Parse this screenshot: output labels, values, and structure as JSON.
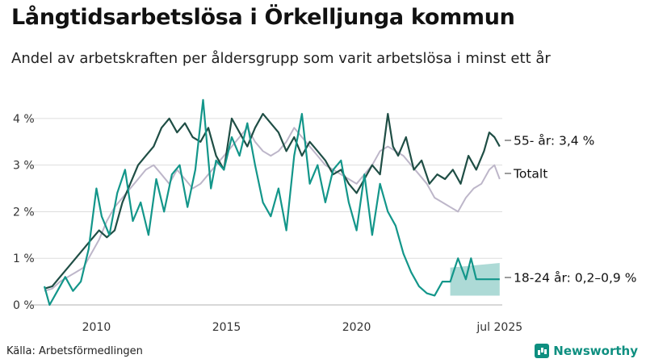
{
  "header": {
    "title": "Långtidsarbetslösa i Örkelljunga kommun",
    "subtitle": "Andel av arbetskraften per åldersgrupp som varit arbetslösa i minst ett år"
  },
  "footer": {
    "source": "Källa: Arbetsförmedlingen",
    "brand": "Newsworthy"
  },
  "chart_data": {
    "type": "line",
    "title": "Långtidsarbetslösa i Örkelljunga kommun",
    "subtitle": "Andel av arbetskraften per åldersgrupp som varit arbetslösa i minst ett år",
    "x_unit": "year",
    "xlim": [
      2008.0,
      2025.6
    ],
    "ylim": [
      0,
      4.5
    ],
    "y_ticks": [
      0,
      1,
      2,
      3,
      4
    ],
    "y_tick_labels": [
      "0 %",
      "1 %",
      "2 %",
      "3 %",
      "4 %"
    ],
    "x_ticks": [
      2010,
      2015,
      2020,
      2025.5
    ],
    "x_tick_labels": [
      "2010",
      "2015",
      "2020",
      "jul 2025"
    ],
    "grid": "horizontal",
    "colors": {
      "total": "#bdb6c9",
      "age_55": "#1f4e45",
      "age_18_24": "#13968a",
      "band": "#13968a"
    },
    "series": [
      {
        "name": "Totalt",
        "label": "Totalt",
        "color": "#bdb6c9",
        "x": [
          2008.0,
          2008.3,
          2008.6,
          2008.9,
          2009.2,
          2009.5,
          2009.8,
          2010.1,
          2010.4,
          2010.7,
          2011.0,
          2011.3,
          2011.6,
          2011.9,
          2012.2,
          2012.5,
          2012.8,
          2013.1,
          2013.4,
          2013.7,
          2014.0,
          2014.3,
          2014.6,
          2014.9,
          2015.2,
          2015.5,
          2015.8,
          2016.1,
          2016.4,
          2016.7,
          2017.0,
          2017.3,
          2017.6,
          2017.9,
          2018.2,
          2018.5,
          2018.8,
          2019.1,
          2019.4,
          2019.7,
          2020.0,
          2020.3,
          2020.6,
          2020.9,
          2021.2,
          2021.5,
          2021.8,
          2022.1,
          2022.4,
          2022.7,
          2023.0,
          2023.3,
          2023.6,
          2023.9,
          2024.2,
          2024.5,
          2024.8,
          2025.1,
          2025.3,
          2025.5
        ],
        "values": [
          0.3,
          0.35,
          0.5,
          0.6,
          0.7,
          0.8,
          1.1,
          1.4,
          1.8,
          2.1,
          2.3,
          2.5,
          2.7,
          2.9,
          3.0,
          2.8,
          2.6,
          2.9,
          2.7,
          2.5,
          2.6,
          2.8,
          3.0,
          3.2,
          3.4,
          3.6,
          3.8,
          3.5,
          3.3,
          3.2,
          3.3,
          3.5,
          3.8,
          3.6,
          3.4,
          3.2,
          3.0,
          2.9,
          2.8,
          2.7,
          2.6,
          2.8,
          3.0,
          3.3,
          3.4,
          3.3,
          3.2,
          3.0,
          2.8,
          2.6,
          2.3,
          2.2,
          2.1,
          2.0,
          2.3,
          2.5,
          2.6,
          2.9,
          3.0,
          2.7
        ]
      },
      {
        "name": "55- år",
        "label": "55- år: 3,4 %",
        "color": "#1f4e45",
        "x": [
          2008.0,
          2008.3,
          2008.6,
          2008.9,
          2009.2,
          2009.5,
          2009.8,
          2010.1,
          2010.4,
          2010.7,
          2011.0,
          2011.3,
          2011.6,
          2011.9,
          2012.2,
          2012.5,
          2012.8,
          2013.1,
          2013.4,
          2013.7,
          2014.0,
          2014.3,
          2014.6,
          2014.9,
          2015.2,
          2015.5,
          2015.8,
          2016.1,
          2016.4,
          2016.7,
          2017.0,
          2017.3,
          2017.6,
          2017.9,
          2018.2,
          2018.5,
          2018.8,
          2019.1,
          2019.4,
          2019.7,
          2020.0,
          2020.3,
          2020.6,
          2020.9,
          2021.2,
          2021.4,
          2021.6,
          2021.9,
          2022.2,
          2022.5,
          2022.8,
          2023.1,
          2023.4,
          2023.7,
          2024.0,
          2024.3,
          2024.6,
          2024.9,
          2025.1,
          2025.3,
          2025.5
        ],
        "values": [
          0.35,
          0.4,
          0.6,
          0.8,
          1.0,
          1.2,
          1.4,
          1.6,
          1.45,
          1.6,
          2.2,
          2.6,
          3.0,
          3.2,
          3.4,
          3.8,
          4.0,
          3.7,
          3.9,
          3.6,
          3.5,
          3.8,
          3.2,
          2.9,
          4.0,
          3.7,
          3.4,
          3.8,
          4.1,
          3.9,
          3.7,
          3.3,
          3.6,
          3.2,
          3.5,
          3.3,
          3.1,
          2.8,
          2.9,
          2.6,
          2.4,
          2.7,
          3.0,
          2.8,
          4.1,
          3.4,
          3.2,
          3.6,
          2.9,
          3.1,
          2.6,
          2.8,
          2.7,
          2.9,
          2.6,
          3.2,
          2.9,
          3.3,
          3.7,
          3.6,
          3.4
        ]
      },
      {
        "name": "18-24 år",
        "label": "18-24 år: 0,2–0,9 %",
        "color": "#13968a",
        "x": [
          2008.0,
          2008.2,
          2008.5,
          2008.8,
          2009.1,
          2009.4,
          2009.7,
          2010.0,
          2010.2,
          2010.5,
          2010.8,
          2011.1,
          2011.4,
          2011.7,
          2012.0,
          2012.3,
          2012.6,
          2012.9,
          2013.2,
          2013.5,
          2013.8,
          2014.1,
          2014.4,
          2014.6,
          2014.9,
          2015.2,
          2015.5,
          2015.8,
          2016.1,
          2016.4,
          2016.7,
          2017.0,
          2017.3,
          2017.6,
          2017.9,
          2018.2,
          2018.5,
          2018.8,
          2019.1,
          2019.4,
          2019.7,
          2020.0,
          2020.3,
          2020.6,
          2020.9,
          2021.2,
          2021.5,
          2021.8,
          2022.1,
          2022.4,
          2022.7,
          2023.0,
          2023.3,
          2023.6,
          2023.9,
          2024.2,
          2024.4,
          2024.6,
          2025.5
        ],
        "values": [
          0.4,
          0.0,
          0.3,
          0.6,
          0.3,
          0.5,
          1.2,
          2.5,
          1.9,
          1.5,
          2.4,
          2.9,
          1.8,
          2.2,
          1.5,
          2.7,
          2.0,
          2.8,
          3.0,
          2.1,
          2.9,
          4.4,
          2.5,
          3.1,
          2.9,
          3.6,
          3.2,
          3.9,
          3.0,
          2.2,
          1.9,
          2.5,
          1.6,
          3.2,
          4.1,
          2.6,
          3.0,
          2.2,
          2.9,
          3.1,
          2.2,
          1.6,
          2.8,
          1.5,
          2.6,
          2.0,
          1.7,
          1.1,
          0.7,
          0.4,
          0.25,
          0.2,
          0.5,
          0.5,
          1.0,
          0.55,
          1.0,
          0.55,
          0.55
        ]
      }
    ],
    "band": {
      "series": "18-24 år",
      "x": [
        2023.6,
        2025.5
      ],
      "lower": [
        0.2,
        0.2
      ],
      "upper": [
        0.8,
        0.9
      ]
    },
    "connectors": [
      "55- år",
      "Totalt",
      "18-24 år"
    ]
  }
}
